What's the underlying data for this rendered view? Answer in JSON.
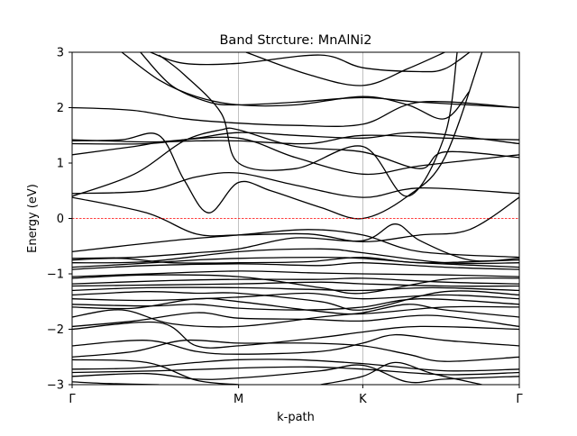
{
  "chart_data": {
    "type": "line",
    "title": "Band Strcture: MnAlNi2",
    "xlabel": "k-path",
    "ylabel": "Energy (eV)",
    "xlim": [
      0,
      3.6
    ],
    "ylim": [
      -3,
      3
    ],
    "grid": true,
    "fermi_level": 0,
    "x_ticks": [
      {
        "label": "Γ",
        "x": 0
      },
      {
        "label": "M",
        "x": 1.34
      },
      {
        "label": "K",
        "x": 2.34
      },
      {
        "label": "Γ",
        "x": 3.6
      }
    ],
    "y_ticks": [
      {
        "label": "−3",
        "v": -3
      },
      {
        "label": "−2",
        "v": -2
      },
      {
        "label": "−1",
        "v": -1
      },
      {
        "label": "0",
        "v": 0
      },
      {
        "label": "1",
        "v": 1
      },
      {
        "label": "2",
        "v": 2
      },
      {
        "label": "3",
        "v": 3
      }
    ],
    "colors": {
      "bands": "#000000",
      "fermi": "#ff0000",
      "grid": "#b0b0b0"
    },
    "bands": [
      [
        [
          0,
          -2.78
        ],
        [
          0.7,
          -2.75
        ],
        [
          1.34,
          -2.7
        ],
        [
          1.9,
          -2.68
        ],
        [
          2.34,
          -2.72
        ],
        [
          3.0,
          -2.82
        ],
        [
          3.6,
          -2.78
        ]
      ],
      [
        [
          0,
          -2.72
        ],
        [
          0.5,
          -2.7
        ],
        [
          1.0,
          -2.6
        ],
        [
          1.34,
          -2.55
        ],
        [
          1.8,
          -2.55
        ],
        [
          2.34,
          -2.62
        ],
        [
          3.0,
          -2.75
        ],
        [
          3.6,
          -2.72
        ]
      ],
      [
        [
          0,
          -2.55
        ],
        [
          0.6,
          -2.6
        ],
        [
          1.0,
          -2.92
        ],
        [
          1.34,
          -3.0
        ]
      ],
      [
        [
          0,
          -2.5
        ],
        [
          0.5,
          -2.4
        ],
        [
          0.9,
          -2.2
        ],
        [
          1.34,
          -2.25
        ],
        [
          1.9,
          -2.25
        ],
        [
          2.34,
          -2.3
        ],
        [
          2.7,
          -2.45
        ],
        [
          3.0,
          -2.58
        ],
        [
          3.6,
          -2.5
        ]
      ],
      [
        [
          0,
          -2.3
        ],
        [
          0.6,
          -2.2
        ],
        [
          1.0,
          -2.4
        ],
        [
          1.34,
          -2.45
        ],
        [
          2.0,
          -2.4
        ],
        [
          2.34,
          -2.25
        ],
        [
          2.6,
          -2.1
        ],
        [
          3.0,
          -2.2
        ],
        [
          3.6,
          -2.3
        ]
      ],
      [
        [
          0,
          -2.0
        ],
        [
          0.7,
          -1.88
        ],
        [
          1.0,
          -2.3
        ],
        [
          1.34,
          -2.3
        ],
        [
          2.0,
          -2.15
        ],
        [
          2.34,
          -2.05
        ],
        [
          2.8,
          -1.95
        ],
        [
          3.6,
          -2.0
        ]
      ],
      [
        [
          0,
          -1.95
        ],
        [
          0.5,
          -1.85
        ],
        [
          1.0,
          -1.7
        ],
        [
          1.34,
          -1.8
        ],
        [
          1.9,
          -1.82
        ],
        [
          2.34,
          -1.85
        ],
        [
          2.9,
          -1.75
        ],
        [
          3.6,
          -1.95
        ]
      ],
      [
        [
          0,
          -1.78
        ],
        [
          0.4,
          -1.65
        ],
        [
          0.8,
          -1.9
        ],
        [
          1.34,
          -1.95
        ],
        [
          2.0,
          -1.78
        ],
        [
          2.34,
          -1.7
        ],
        [
          2.7,
          -1.55
        ],
        [
          3.0,
          -1.65
        ],
        [
          3.6,
          -1.78
        ]
      ],
      [
        [
          0,
          -1.55
        ],
        [
          0.6,
          -1.58
        ],
        [
          1.0,
          -1.55
        ],
        [
          1.34,
          -1.62
        ],
        [
          1.9,
          -1.65
        ],
        [
          2.34,
          -1.6
        ],
        [
          2.8,
          -1.45
        ],
        [
          3.6,
          -1.55
        ]
      ],
      [
        [
          0,
          -1.45
        ],
        [
          0.6,
          -1.48
        ],
        [
          1.34,
          -1.42
        ],
        [
          1.9,
          -1.35
        ],
        [
          2.34,
          -1.45
        ],
        [
          3.0,
          -1.38
        ],
        [
          3.6,
          -1.45
        ]
      ],
      [
        [
          0,
          -1.38
        ],
        [
          0.6,
          -1.32
        ],
        [
          1.0,
          -1.35
        ],
        [
          1.34,
          -1.35
        ],
        [
          2.0,
          -1.5
        ],
        [
          2.34,
          -1.65
        ],
        [
          3.0,
          -1.32
        ],
        [
          3.6,
          -1.38
        ]
      ],
      [
        [
          0,
          -1.3
        ],
        [
          0.6,
          -1.25
        ],
        [
          1.34,
          -1.25
        ],
        [
          1.9,
          -1.28
        ],
        [
          2.34,
          -1.3
        ],
        [
          2.9,
          -1.25
        ],
        [
          3.6,
          -1.3
        ]
      ],
      [
        [
          0,
          -1.22
        ],
        [
          0.7,
          -1.2
        ],
        [
          1.34,
          -1.18
        ],
        [
          2.0,
          -1.15
        ],
        [
          2.34,
          -1.18
        ],
        [
          3.0,
          -1.22
        ],
        [
          3.6,
          -1.22
        ]
      ],
      [
        [
          0,
          -1.18
        ],
        [
          0.8,
          -1.12
        ],
        [
          1.34,
          -1.1
        ],
        [
          2.0,
          -1.1
        ],
        [
          2.34,
          -1.08
        ],
        [
          3.0,
          -1.15
        ],
        [
          3.6,
          -1.18
        ]
      ],
      [
        [
          0,
          -1.05
        ],
        [
          0.6,
          -1.0
        ],
        [
          1.34,
          -0.95
        ],
        [
          1.9,
          -0.98
        ],
        [
          2.34,
          -1.0
        ],
        [
          3.0,
          -1.02
        ],
        [
          3.6,
          -1.05
        ]
      ],
      [
        [
          0,
          -0.92
        ],
        [
          0.6,
          -0.85
        ],
        [
          1.34,
          -0.82
        ],
        [
          2.0,
          -0.85
        ],
        [
          2.34,
          -0.8
        ],
        [
          3.0,
          -0.88
        ],
        [
          3.6,
          -0.92
        ]
      ],
      [
        [
          0,
          -0.88
        ],
        [
          0.5,
          -0.82
        ],
        [
          1.0,
          -0.75
        ],
        [
          1.34,
          -0.72
        ],
        [
          2.0,
          -0.7
        ],
        [
          2.34,
          -0.72
        ],
        [
          2.8,
          -0.8
        ],
        [
          3.6,
          -0.88
        ]
      ],
      [
        [
          0,
          -0.8
        ],
        [
          0.6,
          -0.78
        ],
        [
          1.34,
          -0.6
        ],
        [
          2.0,
          -0.55
        ],
        [
          2.34,
          -0.62
        ],
        [
          3.0,
          -0.8
        ],
        [
          3.6,
          -0.8
        ]
      ],
      [
        [
          0,
          -0.75
        ],
        [
          0.4,
          -0.72
        ],
        [
          0.8,
          -0.8
        ],
        [
          1.34,
          -0.8
        ],
        [
          1.9,
          -0.78
        ],
        [
          2.34,
          -0.7
        ],
        [
          2.8,
          -0.8
        ],
        [
          3.6,
          -0.75
        ]
      ],
      [
        [
          0,
          -0.72
        ],
        [
          0.5,
          -0.7
        ],
        [
          1.0,
          -0.62
        ],
        [
          1.34,
          -0.55
        ],
        [
          1.8,
          -0.35
        ],
        [
          2.34,
          -0.4
        ],
        [
          2.6,
          -0.1
        ],
        [
          2.8,
          -0.4
        ],
        [
          3.2,
          -0.75
        ],
        [
          3.6,
          -0.72
        ]
      ],
      [
        [
          0,
          0.38
        ],
        [
          0.6,
          0.1
        ],
        [
          1.0,
          -0.28
        ],
        [
          1.34,
          -0.3
        ],
        [
          1.9,
          -0.28
        ],
        [
          2.34,
          -0.42
        ],
        [
          2.8,
          -0.3
        ],
        [
          3.2,
          -0.2
        ],
        [
          3.6,
          0.38
        ]
      ],
      [
        [
          0,
          0.45
        ],
        [
          0.6,
          0.5
        ],
        [
          1.0,
          0.75
        ],
        [
          1.34,
          0.82
        ],
        [
          1.8,
          0.6
        ],
        [
          2.34,
          0.38
        ],
        [
          2.8,
          0.55
        ],
        [
          3.6,
          0.45
        ]
      ],
      [
        [
          0,
          1.15
        ],
        [
          0.5,
          1.3
        ],
        [
          0.8,
          1.4
        ],
        [
          1.34,
          1.45
        ],
        [
          1.8,
          1.1
        ],
        [
          2.34,
          0.8
        ],
        [
          2.8,
          0.95
        ],
        [
          3.6,
          1.15
        ]
      ],
      [
        [
          0,
          1.35
        ],
        [
          0.6,
          1.35
        ],
        [
          1.0,
          1.45
        ],
        [
          1.34,
          1.55
        ],
        [
          1.8,
          1.5
        ],
        [
          2.34,
          1.45
        ],
        [
          2.8,
          1.55
        ],
        [
          3.6,
          1.35
        ]
      ],
      [
        [
          0,
          1.42
        ],
        [
          0.6,
          1.38
        ],
        [
          1.0,
          1.4
        ],
        [
          1.34,
          1.4
        ],
        [
          1.9,
          1.35
        ],
        [
          2.34,
          1.5
        ],
        [
          3.0,
          1.45
        ],
        [
          3.6,
          1.42
        ]
      ],
      [
        [
          0,
          2.0
        ],
        [
          0.5,
          1.95
        ],
        [
          0.9,
          1.8
        ],
        [
          1.34,
          1.72
        ],
        [
          1.8,
          1.68
        ],
        [
          2.34,
          1.7
        ],
        [
          2.8,
          2.1
        ],
        [
          3.6,
          2.0
        ]
      ],
      [
        [
          0.55,
          3.0
        ],
        [
          0.8,
          2.4
        ],
        [
          1.1,
          2.1
        ],
        [
          1.34,
          2.05
        ],
        [
          1.8,
          2.1
        ],
        [
          2.34,
          2.18
        ],
        [
          2.8,
          2.1
        ],
        [
          3.6,
          2.0
        ]
      ],
      [
        [
          0.4,
          3.0
        ],
        [
          0.7,
          2.5
        ],
        [
          1.0,
          2.2
        ],
        [
          1.34,
          2.05
        ],
        [
          1.8,
          2.05
        ],
        [
          2.34,
          2.2
        ],
        [
          2.7,
          2.05
        ],
        [
          3.0,
          1.8
        ],
        [
          3.2,
          2.3
        ]
      ],
      [
        [
          0.63,
          3.0
        ],
        [
          0.9,
          2.8
        ],
        [
          1.34,
          2.8
        ],
        [
          2.0,
          2.95
        ],
        [
          2.34,
          2.72
        ],
        [
          2.8,
          2.65
        ],
        [
          3.0,
          2.7
        ],
        [
          3.2,
          3.0
        ]
      ],
      [
        [
          0,
          0.4
        ],
        [
          0.5,
          0.8
        ],
        [
          0.9,
          1.4
        ],
        [
          1.2,
          1.6
        ],
        [
          1.34,
          1.6
        ],
        [
          1.8,
          1.3
        ],
        [
          2.34,
          1.2
        ],
        [
          2.8,
          0.9
        ],
        [
          3.0,
          1.2
        ],
        [
          3.6,
          1.1
        ]
      ],
      [
        [
          0,
          1.4
        ],
        [
          0.4,
          1.42
        ],
        [
          0.7,
          1.5
        ],
        [
          0.9,
          0.7
        ],
        [
          1.1,
          0.1
        ],
        [
          1.34,
          0.65
        ],
        [
          1.6,
          0.5
        ],
        [
          2.0,
          0.2
        ],
        [
          2.34,
          0.0
        ],
        [
          2.7,
          0.4
        ],
        [
          3.0,
          1.1
        ],
        [
          3.3,
          3.0
        ]
      ],
      [
        [
          0.7,
          2.95
        ],
        [
          0.9,
          2.6
        ],
        [
          1.2,
          1.9
        ],
        [
          1.34,
          1.0
        ],
        [
          1.8,
          0.9
        ],
        [
          2.34,
          1.3
        ],
        [
          2.7,
          0.4
        ],
        [
          3.0,
          1.5
        ],
        [
          3.1,
          3.0
        ]
      ],
      [
        [
          1.4,
          3.0
        ],
        [
          1.9,
          2.6
        ],
        [
          2.34,
          2.4
        ],
        [
          2.7,
          2.7
        ],
        [
          3.0,
          3.0
        ]
      ],
      [
        [
          0,
          -0.6
        ],
        [
          0.8,
          -0.4
        ],
        [
          1.34,
          -0.3
        ],
        [
          1.9,
          -0.2
        ],
        [
          2.34,
          -0.3
        ],
        [
          2.8,
          -0.6
        ],
        [
          3.6,
          -0.7
        ]
      ],
      [
        [
          0,
          -1.08
        ],
        [
          0.6,
          -1.02
        ],
        [
          1.34,
          -1.05
        ],
        [
          2.0,
          -1.25
        ],
        [
          2.34,
          -1.35
        ],
        [
          3.0,
          -1.1
        ],
        [
          3.6,
          -1.08
        ]
      ],
      [
        [
          0,
          -1.6
        ],
        [
          0.5,
          -1.62
        ],
        [
          1.0,
          -1.45
        ],
        [
          1.34,
          -1.5
        ],
        [
          2.0,
          -1.68
        ],
        [
          2.34,
          -1.72
        ],
        [
          3.0,
          -1.6
        ],
        [
          3.6,
          -1.6
        ]
      ],
      [
        [
          0,
          -2.85
        ],
        [
          0.6,
          -2.8
        ],
        [
          1.0,
          -2.9
        ],
        [
          1.34,
          -2.88
        ],
        [
          2.0,
          -2.75
        ],
        [
          2.34,
          -2.65
        ],
        [
          2.7,
          -2.95
        ],
        [
          3.0,
          -2.9
        ],
        [
          3.6,
          -2.85
        ]
      ],
      [
        [
          0,
          -2.95
        ],
        [
          0.3,
          -2.98
        ],
        [
          0.7,
          -3.0
        ]
      ],
      [
        [
          2.0,
          -3.0
        ],
        [
          2.34,
          -2.85
        ],
        [
          2.6,
          -2.6
        ],
        [
          2.9,
          -2.8
        ],
        [
          3.3,
          -3.0
        ]
      ]
    ]
  }
}
